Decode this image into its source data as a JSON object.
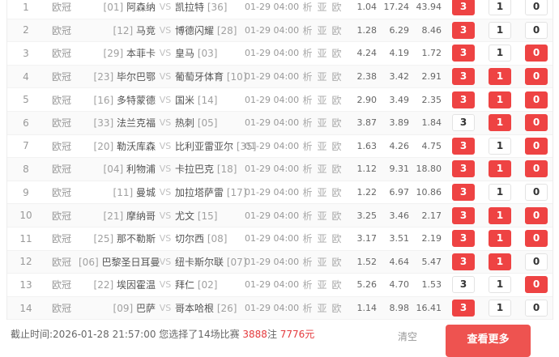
{
  "table": {
    "links": [
      "析",
      "亚",
      "欧"
    ],
    "pick_labels": [
      "3",
      "1",
      "0"
    ],
    "rows": [
      {
        "no": "1",
        "league": "欧冠",
        "home_num": "[01]",
        "home": "阿森纳",
        "vs": "VS",
        "away": "凯拉特",
        "away_num": "[36]",
        "time": "01-29 04:00",
        "odds": [
          "1.04",
          "17.24",
          "43.94"
        ],
        "picks": [
          true,
          false,
          false
        ]
      },
      {
        "no": "2",
        "league": "欧冠",
        "home_num": "[12]",
        "home": "马竞",
        "vs": "VS",
        "away": "博德闪耀",
        "away_num": "[28]",
        "time": "01-29 04:00",
        "odds": [
          "1.28",
          "6.29",
          "8.46"
        ],
        "picks": [
          true,
          false,
          false
        ]
      },
      {
        "no": "3",
        "league": "欧冠",
        "home_num": "[29]",
        "home": "本菲卡",
        "vs": "VS",
        "away": "皇马",
        "away_num": "[03]",
        "time": "01-29 04:00",
        "odds": [
          "4.24",
          "4.19",
          "1.72"
        ],
        "picks": [
          true,
          false,
          true
        ]
      },
      {
        "no": "4",
        "league": "欧冠",
        "home_num": "[23]",
        "home": "毕尔巴鄂",
        "vs": "VS",
        "away": "葡萄牙体育",
        "away_num": "[10]",
        "time": "01-29 04:00",
        "odds": [
          "2.38",
          "3.42",
          "2.91"
        ],
        "picks": [
          true,
          true,
          true
        ]
      },
      {
        "no": "5",
        "league": "欧冠",
        "home_num": "[16]",
        "home": "多特蒙德",
        "vs": "VS",
        "away": "国米",
        "away_num": "[14]",
        "time": "01-29 04:00",
        "odds": [
          "2.90",
          "3.49",
          "2.35"
        ],
        "picks": [
          true,
          true,
          true
        ]
      },
      {
        "no": "6",
        "league": "欧冠",
        "home_num": "[33]",
        "home": "法兰克福",
        "vs": "VS",
        "away": "热刺",
        "away_num": "[05]",
        "time": "01-29 04:00",
        "odds": [
          "3.87",
          "3.89",
          "1.84"
        ],
        "picks": [
          false,
          true,
          true
        ]
      },
      {
        "no": "7",
        "league": "欧冠",
        "home_num": "[20]",
        "home": "勒沃库森",
        "vs": "VS",
        "away": "比利亚雷亚尔",
        "away_num": "[35]",
        "time": "01-29 04:00",
        "odds": [
          "1.63",
          "4.26",
          "4.75"
        ],
        "picks": [
          true,
          false,
          true
        ]
      },
      {
        "no": "8",
        "league": "欧冠",
        "home_num": "[04]",
        "home": "利物浦",
        "vs": "VS",
        "away": "卡拉巴克",
        "away_num": "[18]",
        "time": "01-29 04:00",
        "odds": [
          "1.12",
          "9.31",
          "18.80"
        ],
        "picks": [
          true,
          true,
          true
        ]
      },
      {
        "no": "9",
        "league": "欧冠",
        "home_num": "[11]",
        "home": "曼城",
        "vs": "VS",
        "away": "加拉塔萨雷",
        "away_num": "[17]",
        "time": "01-29 04:00",
        "odds": [
          "1.22",
          "6.97",
          "10.86"
        ],
        "picks": [
          true,
          false,
          false
        ]
      },
      {
        "no": "10",
        "league": "欧冠",
        "home_num": "[21]",
        "home": "摩纳哥",
        "vs": "VS",
        "away": "尤文",
        "away_num": "[15]",
        "time": "01-29 04:00",
        "odds": [
          "3.25",
          "3.46",
          "2.17"
        ],
        "picks": [
          true,
          true,
          true
        ]
      },
      {
        "no": "11",
        "league": "欧冠",
        "home_num": "[25]",
        "home": "那不勒斯",
        "vs": "VS",
        "away": "切尔西",
        "away_num": "[08]",
        "time": "01-29 04:00",
        "odds": [
          "3.17",
          "3.51",
          "2.19"
        ],
        "picks": [
          true,
          true,
          true
        ]
      },
      {
        "no": "12",
        "league": "欧冠",
        "home_num": "[06]",
        "home": "巴黎圣日耳曼",
        "vs": "VS",
        "away": "纽卡斯尔联",
        "away_num": "[07]",
        "time": "01-29 04:00",
        "odds": [
          "1.52",
          "4.64",
          "5.47"
        ],
        "picks": [
          true,
          true,
          false
        ]
      },
      {
        "no": "13",
        "league": "欧冠",
        "home_num": "[22]",
        "home": "埃因霍温",
        "vs": "VS",
        "away": "拜仁",
        "away_num": "[02]",
        "time": "01-29 04:00",
        "odds": [
          "5.26",
          "4.70",
          "1.53"
        ],
        "picks": [
          false,
          false,
          true
        ]
      },
      {
        "no": "14",
        "league": "欧冠",
        "home_num": "[09]",
        "home": "巴萨",
        "vs": "VS",
        "away": "哥本哈根",
        "away_num": "[26]",
        "time": "01-29 04:00",
        "odds": [
          "1.14",
          "8.98",
          "16.41"
        ],
        "picks": [
          true,
          false,
          false
        ]
      }
    ]
  },
  "footer": {
    "deadline_prefix": "截止时间:2026-01-28 21:57:00 您选择了14场比赛 ",
    "bets_value": "3888",
    "bets_unit": "注 ",
    "amount_value": "7776元",
    "clear_label": "清空",
    "more_button_label": "查看更多"
  },
  "colors": {
    "accent_red": "#ee4343",
    "footer_button_red": "#ee5350",
    "highlight_red": "#e4393c"
  }
}
